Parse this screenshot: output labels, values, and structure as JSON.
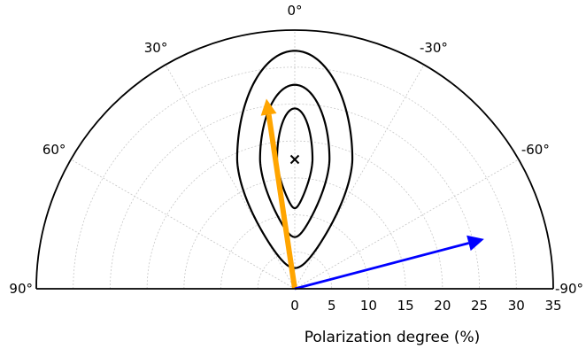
{
  "chart_data": {
    "type": "polar-half",
    "xlabel": "Polarization degree (%)",
    "radial_range": [
      0,
      35
    ],
    "radial_ticks": [
      0,
      5,
      10,
      15,
      20,
      25,
      30,
      35
    ],
    "angle_range": [
      -90,
      90
    ],
    "angle_labels": [
      {
        "angle": 0,
        "text": "0°"
      },
      {
        "angle": 30,
        "text": "30°"
      },
      {
        "angle": -30,
        "text": "-30°"
      },
      {
        "angle": 60,
        "text": "60°"
      },
      {
        "angle": -60,
        "text": "-60°"
      },
      {
        "angle": 90,
        "text": "90°"
      },
      {
        "angle": -90,
        "text": "-90°"
      }
    ],
    "grid": true,
    "best_fit_marker": {
      "symbol": "x",
      "angle": 0,
      "degree": 17.5
    },
    "confidence_contours": [
      {
        "level": 1,
        "center_degree": 17.5,
        "half_width": 2.4,
        "inner_degree": 10.9,
        "outer_degree": 24.4
      },
      {
        "level": 2,
        "center_degree": 17.5,
        "half_width": 4.7,
        "inner_degree": 7.0,
        "outer_degree": 27.6
      },
      {
        "level": 3,
        "center_degree": 17.5,
        "half_width": 7.8,
        "inner_degree": 2.8,
        "outer_degree": 32.2
      }
    ],
    "arrows": [
      {
        "color": "#ffa500",
        "angle": 8.5,
        "length": 26.0
      },
      {
        "color": "#0000ff",
        "angle": -75.3,
        "length": 26.5
      }
    ]
  }
}
